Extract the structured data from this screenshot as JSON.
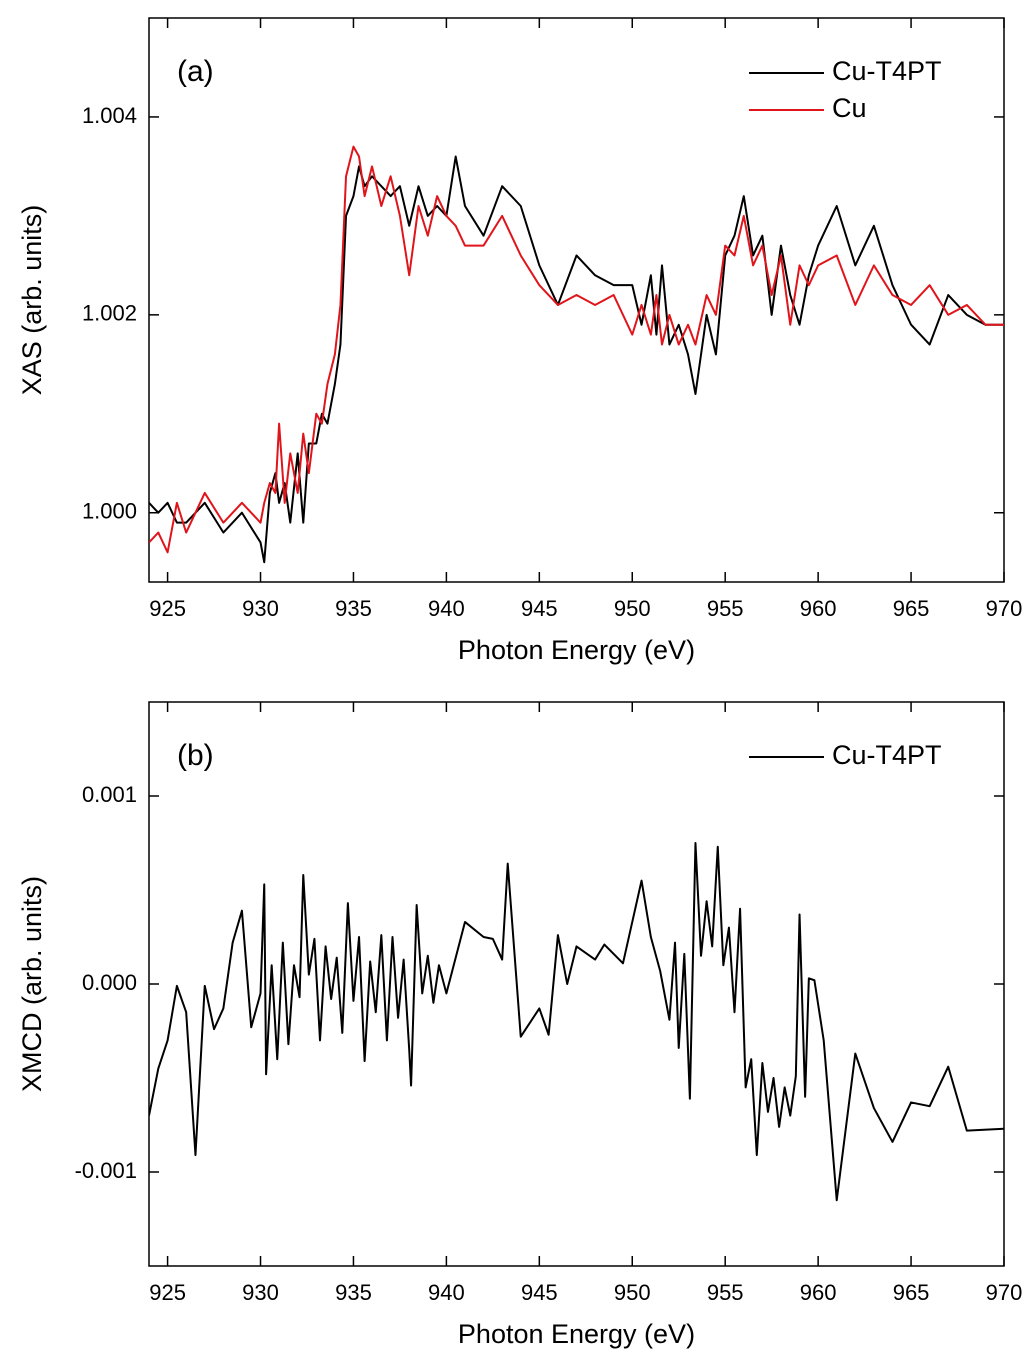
{
  "chart_data": [
    {
      "type": "line",
      "annotation": "(a)",
      "xlabel": "Photon Energy (eV)",
      "ylabel": "XAS (arb. units)",
      "x": [
        924,
        924.5,
        925,
        925.5,
        926,
        927,
        928,
        929,
        930,
        930.2,
        930.5,
        930.8,
        931,
        931.3,
        931.6,
        932,
        932.3,
        932.6,
        933,
        933.3,
        933.6,
        934,
        934.3,
        934.6,
        935,
        935.3,
        935.6,
        936,
        936.5,
        937,
        937.5,
        938,
        938.5,
        939,
        939.5,
        940,
        940.5,
        941,
        942,
        943,
        944,
        945,
        946,
        947,
        948,
        949,
        950,
        950.5,
        951,
        951.3,
        951.6,
        952,
        952.5,
        953,
        953.4,
        954,
        954.5,
        955,
        955.5,
        956,
        956.5,
        957,
        957.5,
        958,
        958.5,
        959,
        959.5,
        960,
        961,
        962,
        963,
        964,
        965,
        966,
        967,
        968,
        969,
        970
      ],
      "series": [
        {
          "name": "Cu-T4PT",
          "color": "#000000",
          "values": [
            1.0001,
            1.0,
            1.0001,
            0.9999,
            0.9999,
            1.0001,
            0.9998,
            1.0,
            0.9997,
            0.9995,
            1.0002,
            1.0004,
            1.0001,
            1.0003,
            0.9999,
            1.0006,
            0.9999,
            1.0007,
            1.0007,
            1.001,
            1.0009,
            1.0013,
            1.0017,
            1.003,
            1.0032,
            1.0035,
            1.0033,
            1.0034,
            1.0033,
            1.0032,
            1.0033,
            1.0029,
            1.0033,
            1.003,
            1.0031,
            1.003,
            1.0036,
            1.0031,
            1.0028,
            1.0033,
            1.0031,
            1.0025,
            1.0021,
            1.0026,
            1.0024,
            1.0023,
            1.0023,
            1.0019,
            1.0024,
            1.0018,
            1.0025,
            1.0017,
            1.0019,
            1.0016,
            1.0012,
            1.002,
            1.0016,
            1.0026,
            1.0028,
            1.0032,
            1.0026,
            1.0028,
            1.002,
            1.0027,
            1.0022,
            1.0019,
            1.0024,
            1.0027,
            1.0031,
            1.0025,
            1.0029,
            1.0023,
            1.0019,
            1.0017,
            1.0022,
            1.002,
            1.0019,
            1.0019
          ]
        },
        {
          "name": "Cu",
          "color": "#e0151b",
          "values": [
            0.9997,
            0.9998,
            0.9996,
            1.0001,
            0.9998,
            1.0002,
            0.9999,
            1.0001,
            0.9999,
            1.0001,
            1.0003,
            1.0002,
            1.0009,
            1.0001,
            1.0006,
            1.0002,
            1.0008,
            1.0004,
            1.001,
            1.0009,
            1.0013,
            1.0016,
            1.0021,
            1.0034,
            1.0037,
            1.0036,
            1.0032,
            1.0035,
            1.0031,
            1.0034,
            1.003,
            1.0024,
            1.0031,
            1.0028,
            1.0032,
            1.003,
            1.0029,
            1.0027,
            1.0027,
            1.003,
            1.0026,
            1.0023,
            1.0021,
            1.0022,
            1.0021,
            1.0022,
            1.0018,
            1.0021,
            1.0018,
            1.0022,
            1.0017,
            1.002,
            1.0017,
            1.0019,
            1.0017,
            1.0022,
            1.002,
            1.0027,
            1.0026,
            1.003,
            1.0025,
            1.0027,
            1.0022,
            1.0026,
            1.0019,
            1.0025,
            1.0023,
            1.0025,
            1.0026,
            1.0021,
            1.0025,
            1.0022,
            1.0021,
            1.0023,
            1.002,
            1.0021,
            1.0019,
            1.0019
          ]
        }
      ],
      "xlim": [
        924,
        970
      ],
      "ylim": [
        0.9993,
        1.005
      ],
      "xticks": [
        925,
        930,
        935,
        940,
        945,
        950,
        955,
        960,
        965,
        970
      ],
      "yticks": [
        {
          "value": 1.0,
          "label": "1.000"
        },
        {
          "value": 1.002,
          "label": "1.002"
        },
        {
          "value": 1.004,
          "label": "1.004"
        }
      ],
      "legend": "upper right"
    },
    {
      "type": "line",
      "annotation": "(b)",
      "xlabel": "Photon Energy (eV)",
      "ylabel": "XMCD (arb. units)",
      "x": [
        924,
        924.5,
        925,
        925.5,
        926,
        926.5,
        927,
        927.5,
        928,
        928.5,
        929,
        929.5,
        930,
        930.2,
        930.3,
        930.6,
        930.9,
        931.2,
        931.5,
        931.8,
        932.1,
        932.3,
        932.6,
        932.9,
        933.2,
        933.5,
        933.8,
        934.1,
        934.4,
        934.7,
        935,
        935.3,
        935.6,
        935.9,
        936.2,
        936.5,
        936.8,
        937.1,
        937.4,
        937.7,
        938,
        938.1,
        938.4,
        938.7,
        939,
        939.3,
        939.6,
        940,
        941,
        942,
        942.5,
        943,
        943.3,
        944,
        945,
        945.5,
        946,
        946.5,
        947,
        948,
        948.5,
        949.5,
        950.5,
        951,
        951.5,
        952,
        952.3,
        952.5,
        952.8,
        953.1,
        953.4,
        953.7,
        954,
        954.3,
        954.6,
        954.9,
        955.2,
        955.5,
        955.8,
        956.1,
        956.4,
        956.7,
        957,
        957.3,
        957.6,
        957.9,
        958.2,
        958.5,
        958.8,
        959,
        959.3,
        959.5,
        959.8,
        960.3,
        961,
        962,
        963,
        964,
        965,
        966,
        967,
        968,
        970
      ],
      "series": [
        {
          "name": "Cu-T4PT",
          "color": "#000000",
          "values": [
            -0.0007,
            -0.00045,
            -0.0003,
            -1e-05,
            -0.00015,
            -0.00091,
            -1e-05,
            -0.00024,
            -0.00013,
            0.00022,
            0.00039,
            -0.00023,
            -5e-05,
            0.00053,
            -0.00048,
            0.0001,
            -0.0004,
            0.00022,
            -0.00032,
            0.0001,
            -7e-05,
            0.00058,
            5e-05,
            0.00024,
            -0.0003,
            0.0002,
            -8e-05,
            0.00014,
            -0.00026,
            0.00043,
            -9e-05,
            0.00025,
            -0.00041,
            0.00012,
            -0.00015,
            0.00026,
            -0.0003,
            0.00025,
            -0.00018,
            0.00013,
            -0.00035,
            -0.00054,
            0.00042,
            -5e-05,
            0.00015,
            -0.0001,
            0.0001,
            -5e-05,
            0.00033,
            0.00025,
            0.00024,
            0.00013,
            0.00064,
            -0.00028,
            -0.00013,
            -0.00027,
            0.00026,
            0.0,
            0.0002,
            0.00013,
            0.00021,
            0.00011,
            0.00055,
            0.00025,
            7e-05,
            -0.00019,
            0.00022,
            -0.00034,
            0.00016,
            -0.00061,
            0.00075,
            0.00015,
            0.00044,
            0.0002,
            0.00073,
            0.0001,
            0.0003,
            -0.00015,
            0.0004,
            -0.00055,
            -0.0004,
            -0.00091,
            -0.00042,
            -0.00068,
            -0.0005,
            -0.00076,
            -0.00055,
            -0.0007,
            -0.00049,
            0.00037,
            -0.0006,
            3e-05,
            2e-05,
            -0.0003,
            -0.00115,
            -0.00037,
            -0.00066,
            -0.00084,
            -0.00063,
            -0.00065,
            -0.00044,
            -0.00078,
            -0.00077
          ]
        }
      ],
      "xlim": [
        924,
        970
      ],
      "ylim": [
        -0.0015,
        0.0015
      ],
      "xticks": [
        925,
        930,
        935,
        940,
        945,
        950,
        955,
        960,
        965,
        970
      ],
      "yticks": [
        {
          "value": -0.001,
          "label": "-0.001"
        },
        {
          "value": 0,
          "label": "0.000"
        },
        0.001
      ],
      "legend": "upper right"
    }
  ]
}
